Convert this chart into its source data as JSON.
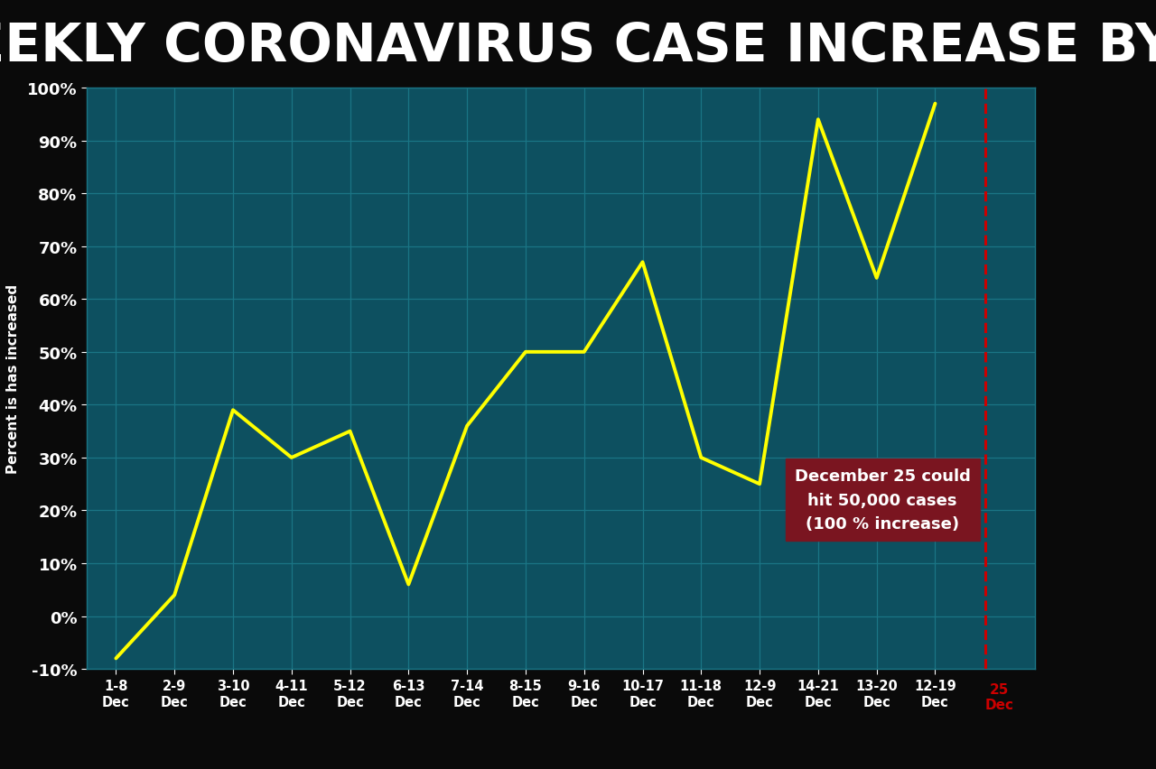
{
  "title": "WEEKLY CORONAVIRUS CASE INCREASE BY %",
  "title_bg": "#0a0a0a",
  "title_color": "#ffffff",
  "bg_color": "#0d5060",
  "grid_color": "#1a7585",
  "line_color": "#ffff00",
  "ylabel": "Percent is has increased",
  "categories": [
    "1-8\nDec",
    "2-9\nDec",
    "3-10\nDec",
    "4-11\nDec",
    "5-12\nDec",
    "6-13\nDec",
    "7-14\nDec",
    "8-15\nDec",
    "9-16\nDec",
    "10-17\nDec",
    "11-18\nDec",
    "12-9\nDec",
    "14-21\nDec",
    "13-20\nDec",
    "12-19\nDec"
  ],
  "values": [
    -8,
    4,
    39,
    30,
    35,
    6,
    36,
    50,
    50,
    67,
    30,
    25,
    94,
    64,
    97
  ],
  "ylim": [
    -10,
    100
  ],
  "yticks": [
    -10,
    0,
    10,
    20,
    30,
    40,
    50,
    60,
    70,
    80,
    90,
    100
  ],
  "annotation_text": "December 25 could\nhit 50,000 cases\n(100 % increase)",
  "annotation_bg": "#7a1520",
  "annotation_color": "#ffffff",
  "dashed_line_color": "#cc0000",
  "last_label": "25\nDec"
}
